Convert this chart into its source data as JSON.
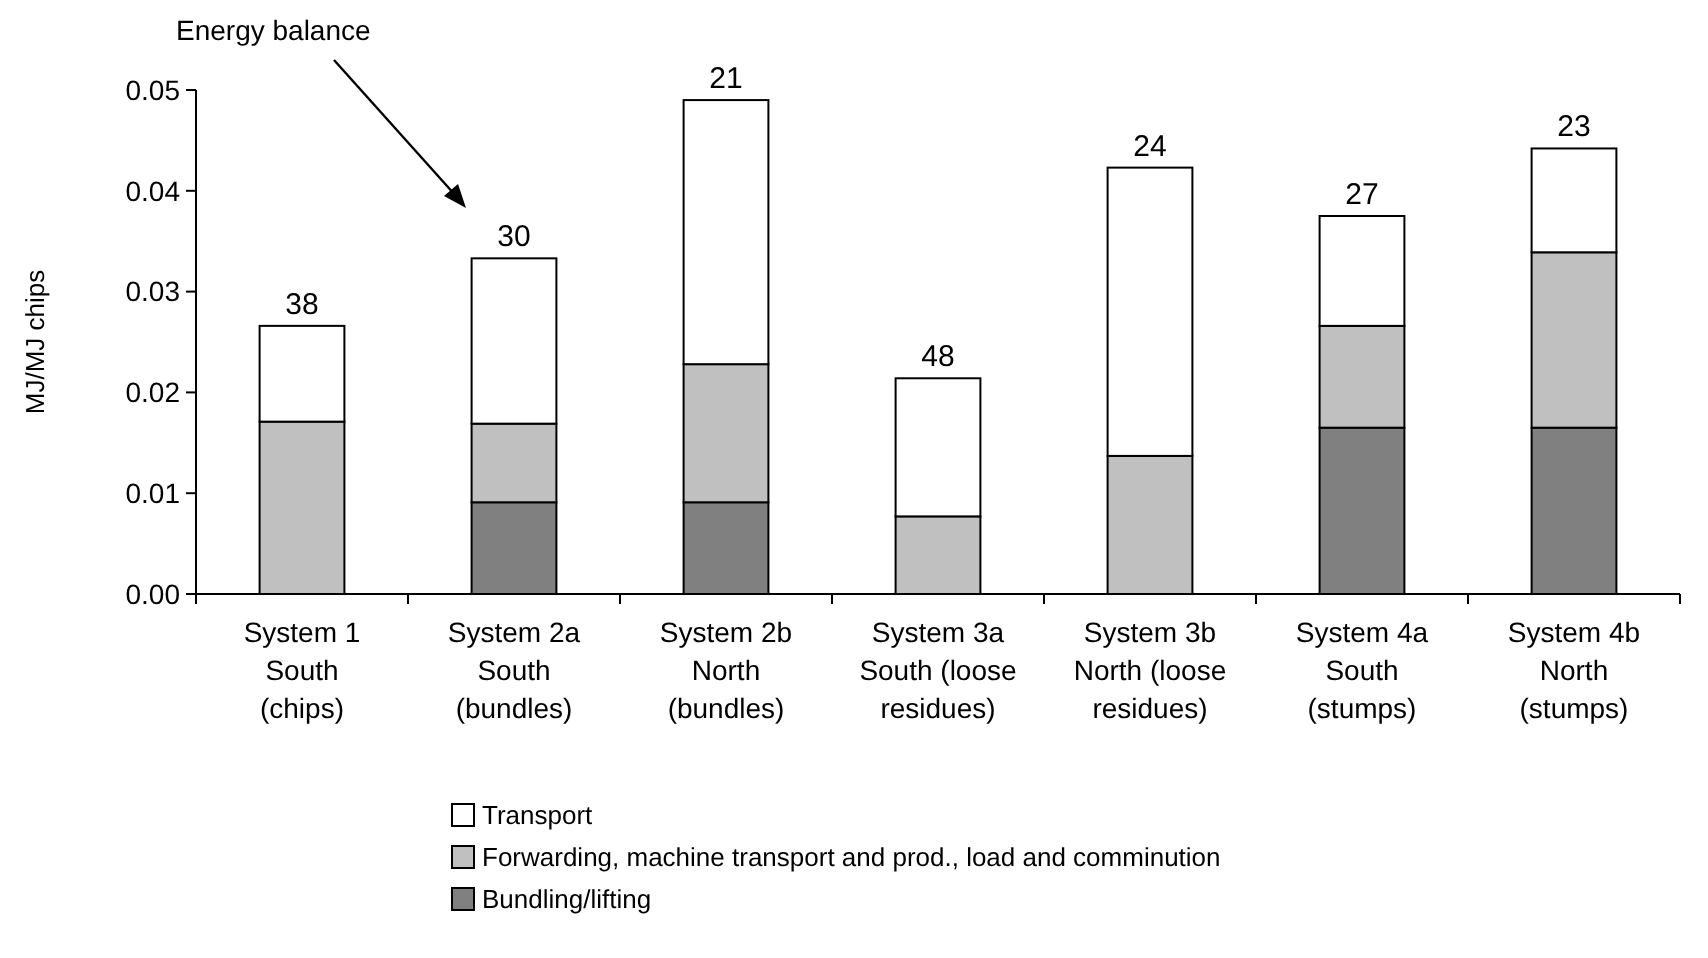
{
  "chart_data": {
    "type": "bar",
    "stacked": true,
    "ylabel": "MJ/MJ chips",
    "categories": [
      "System 1\nSouth\n(chips)",
      "System 2a\nSouth\n(bundles)",
      "System 2b\nNorth\n(bundles)",
      "System 3a\nSouth (loose\nresidues)",
      "System 3b\nNorth (loose\nresidues)",
      "System 4a\nSouth\n(stumps)",
      "System 4b\nNorth\n(stumps)"
    ],
    "series": [
      {
        "name": "Bundling/lifting",
        "color": "#808080",
        "values": [
          null,
          0.0091,
          0.0091,
          null,
          null,
          0.0165,
          0.0165
        ]
      },
      {
        "name": "Forwarding, machine transport and prod., load and comminution",
        "color": "#c0c0c0",
        "values": [
          0.0171,
          0.0078,
          0.0137,
          0.0077,
          0.0137,
          0.0101,
          0.0174
        ]
      },
      {
        "name": "Transport",
        "color": "#ffffff",
        "values": [
          0.0095,
          0.0164,
          0.0262,
          0.0137,
          0.0286,
          0.0109,
          0.0103
        ]
      }
    ],
    "annotations": [
      "Energy balance",
      {
        "text": "38",
        "x": "System 1\nSouth\n(chips)",
        "y": 0.0266
      },
      {
        "text": "30",
        "x": "System 2a\nSouth\n(bundles)",
        "y": 0.0333
      },
      {
        "text": "21",
        "x": "System 2b\nNorth\n(bundles)",
        "y": 0.049
      },
      {
        "text": "48",
        "x": "System 3a\nSouth (loose\nresidues)",
        "y": 0.0214
      },
      {
        "text": "24",
        "x": "System 3b\nNorth (loose\nresidues)",
        "y": 0.0423
      },
      {
        "text": "27",
        "x": "System 4a\nSouth\n(stumps)",
        "y": 0.0375
      },
      {
        "text": "23",
        "x": "System 4b\nNorth\n(stumps)",
        "y": 0.0442
      }
    ],
    "ylim": [
      0,
      0.05
    ],
    "yticks": [
      {
        "value": 0,
        "label": "0.00"
      },
      {
        "value": 0.01,
        "label": "0.01"
      },
      {
        "value": 0.02,
        "label": "0.02"
      },
      {
        "value": 0.03,
        "label": "0.03"
      },
      {
        "value": 0.04,
        "label": "0.04"
      },
      {
        "value": 0.05,
        "label": "0.05"
      }
    ],
    "legend": "bottom",
    "grid": false
  }
}
